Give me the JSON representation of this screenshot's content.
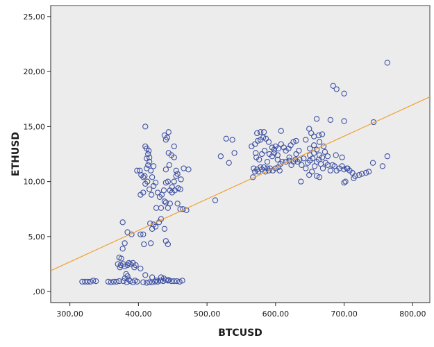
{
  "chart_data": {
    "type": "scatter",
    "xlabel": "BTCUSD",
    "ylabel": "ETHUSD",
    "xlim": [
      272,
      825
    ],
    "ylim": [
      -1.0,
      26.0
    ],
    "x_ticks": [
      {
        "value": 300,
        "label": "300,00"
      },
      {
        "value": 400,
        "label": "400,00"
      },
      {
        "value": 500,
        "label": "500,00"
      },
      {
        "value": 600,
        "label": "600,00"
      },
      {
        "value": 700,
        "label": "700,00"
      },
      {
        "value": 800,
        "label": "800,00"
      }
    ],
    "y_ticks": [
      {
        "value": 0,
        "label": ",00"
      },
      {
        "value": 5,
        "label": "5,00"
      },
      {
        "value": 10,
        "label": "10,00"
      },
      {
        "value": 15,
        "label": "15,00"
      },
      {
        "value": 20,
        "label": "20,00"
      },
      {
        "value": 25,
        "label": "25,00"
      }
    ],
    "grid": false,
    "colors": {
      "points": "#3f51a3",
      "fit_line": "#f0a030",
      "plot_background": "#ececec"
    },
    "fit_line": {
      "x": [
        272,
        825
      ],
      "y": [
        1.9,
        17.7
      ]
    },
    "points": [
      [
        318,
        0.9
      ],
      [
        322,
        0.9
      ],
      [
        326,
        0.9
      ],
      [
        330,
        0.9
      ],
      [
        334,
        1.0
      ],
      [
        338,
        0.95
      ],
      [
        356,
        0.9
      ],
      [
        360,
        0.85
      ],
      [
        364,
        0.9
      ],
      [
        368,
        0.9
      ],
      [
        372,
        0.95
      ],
      [
        378,
        0.95
      ],
      [
        383,
        0.85
      ],
      [
        388,
        0.95
      ],
      [
        392,
        0.85
      ],
      [
        398,
        0.9
      ],
      [
        407,
        0.85
      ],
      [
        412,
        0.8
      ],
      [
        416,
        0.85
      ],
      [
        420,
        0.85
      ],
      [
        424,
        0.9
      ],
      [
        428,
        0.9
      ],
      [
        432,
        1.0
      ],
      [
        436,
        0.95
      ],
      [
        440,
        1.05
      ],
      [
        444,
        1.05
      ],
      [
        448,
        0.95
      ],
      [
        452,
        0.95
      ],
      [
        456,
        0.95
      ],
      [
        460,
        0.9
      ],
      [
        464,
        1.0
      ],
      [
        380,
        1.2
      ],
      [
        384,
        1.4
      ],
      [
        386,
        1.1
      ],
      [
        382,
        1.6
      ],
      [
        395,
        1.0
      ],
      [
        410,
        1.5
      ],
      [
        420,
        1.3
      ],
      [
        426,
        1.0
      ],
      [
        433,
        1.3
      ],
      [
        437,
        1.2
      ],
      [
        443,
        1.0
      ],
      [
        370,
        2.5
      ],
      [
        374,
        2.4
      ],
      [
        378,
        2.5
      ],
      [
        384,
        2.4
      ],
      [
        388,
        2.5
      ],
      [
        392,
        2.6
      ],
      [
        396,
        2.4
      ],
      [
        373,
        2.2
      ],
      [
        380,
        2.3
      ],
      [
        386,
        2.6
      ],
      [
        394,
        2.2
      ],
      [
        403,
        2.1
      ],
      [
        372,
        3.1
      ],
      [
        375,
        3.0
      ],
      [
        377,
        3.9
      ],
      [
        380,
        4.4
      ],
      [
        384,
        5.4
      ],
      [
        390,
        5.2
      ],
      [
        403,
        5.2
      ],
      [
        407,
        5.2
      ],
      [
        408,
        4.3
      ],
      [
        418,
        4.4
      ],
      [
        420,
        5.7
      ],
      [
        425,
        5.9
      ],
      [
        430,
        6.3
      ],
      [
        433,
        6.6
      ],
      [
        440,
        4.6
      ],
      [
        443,
        4.3
      ],
      [
        438,
        5.7
      ],
      [
        377,
        6.3
      ],
      [
        417,
        6.2
      ],
      [
        422,
        6.1
      ],
      [
        426,
        7.6
      ],
      [
        433,
        7.6
      ],
      [
        438,
        8.2
      ],
      [
        440,
        8.1
      ],
      [
        443,
        7.6
      ],
      [
        446,
        8.0
      ],
      [
        449,
        9.0
      ],
      [
        453,
        9.2
      ],
      [
        457,
        8.0
      ],
      [
        461,
        7.5
      ],
      [
        465,
        7.5
      ],
      [
        470,
        7.4
      ],
      [
        403,
        8.8
      ],
      [
        407,
        9.0
      ],
      [
        410,
        9.8
      ],
      [
        413,
        10.0
      ],
      [
        416,
        9.3
      ],
      [
        419,
        8.8
      ],
      [
        422,
        9.6
      ],
      [
        425,
        9.9
      ],
      [
        428,
        9.0
      ],
      [
        431,
        8.6
      ],
      [
        434,
        8.8
      ],
      [
        437,
        9.2
      ],
      [
        440,
        9.9
      ],
      [
        443,
        10.0
      ],
      [
        446,
        9.2
      ],
      [
        449,
        9.5
      ],
      [
        452,
        10.0
      ],
      [
        455,
        10.5
      ],
      [
        458,
        9.4
      ],
      [
        461,
        9.3
      ],
      [
        398,
        11.0
      ],
      [
        402,
        11.0
      ],
      [
        404,
        10.6
      ],
      [
        407,
        10.4
      ],
      [
        409,
        10.5
      ],
      [
        412,
        11.2
      ],
      [
        414,
        11.5
      ],
      [
        416,
        11.8
      ],
      [
        418,
        11.0
      ],
      [
        420,
        10.4
      ],
      [
        422,
        11.4
      ],
      [
        414,
        12.5
      ],
      [
        416,
        12.2
      ],
      [
        412,
        12.1
      ],
      [
        444,
        12.6
      ],
      [
        448,
        12.4
      ],
      [
        452,
        12.2
      ],
      [
        455,
        11.0
      ],
      [
        457,
        10.7
      ],
      [
        462,
        10.2
      ],
      [
        466,
        11.2
      ],
      [
        473,
        11.1
      ],
      [
        440,
        11.1
      ],
      [
        445,
        11.5
      ],
      [
        410,
        13.2
      ],
      [
        412,
        13.0
      ],
      [
        415,
        12.8
      ],
      [
        440,
        13.8
      ],
      [
        442,
        14.0
      ],
      [
        438,
        14.2
      ],
      [
        444,
        14.5
      ],
      [
        452,
        13.2
      ],
      [
        410,
        15.0
      ],
      [
        512,
        8.3
      ],
      [
        520,
        12.3
      ],
      [
        528,
        13.9
      ],
      [
        532,
        11.7
      ],
      [
        537,
        13.8
      ],
      [
        540,
        12.6
      ],
      [
        567,
        10.4
      ],
      [
        570,
        10.9
      ],
      [
        573,
        11.1
      ],
      [
        575,
        10.9
      ],
      [
        578,
        11.3
      ],
      [
        580,
        11.1
      ],
      [
        583,
        11.3
      ],
      [
        585,
        10.9
      ],
      [
        588,
        11.2
      ],
      [
        590,
        11.0
      ],
      [
        592,
        11.2
      ],
      [
        596,
        11.0
      ],
      [
        600,
        11.2
      ],
      [
        604,
        11.3
      ],
      [
        606,
        11.0
      ],
      [
        568,
        11.2
      ],
      [
        572,
        12.2
      ],
      [
        576,
        12.0
      ],
      [
        580,
        12.5
      ],
      [
        584,
        12.8
      ],
      [
        588,
        11.8
      ],
      [
        591,
        12.5
      ],
      [
        595,
        12.3
      ],
      [
        598,
        12.6
      ],
      [
        603,
        12.0
      ],
      [
        607,
        11.6
      ],
      [
        610,
        11.8
      ],
      [
        615,
        11.8
      ],
      [
        620,
        11.9
      ],
      [
        565,
        13.2
      ],
      [
        570,
        13.4
      ],
      [
        574,
        13.7
      ],
      [
        578,
        13.8
      ],
      [
        582,
        14.0
      ],
      [
        586,
        13.9
      ],
      [
        590,
        13.6
      ],
      [
        595,
        13.1
      ],
      [
        598,
        12.9
      ],
      [
        600,
        13.2
      ],
      [
        604,
        13.0
      ],
      [
        608,
        13.4
      ],
      [
        612,
        13.1
      ],
      [
        615,
        12.8
      ],
      [
        619,
        13.0
      ],
      [
        622,
        13.3
      ],
      [
        626,
        13.6
      ],
      [
        630,
        13.7
      ],
      [
        573,
        14.4
      ],
      [
        578,
        14.5
      ],
      [
        583,
        14.5
      ],
      [
        608,
        14.6
      ],
      [
        571,
        12.6
      ],
      [
        603,
        12.4
      ],
      [
        620,
        12.2
      ],
      [
        623,
        11.5
      ],
      [
        626,
        11.8
      ],
      [
        629,
        12.0
      ],
      [
        632,
        11.8
      ],
      [
        635,
        12.0
      ],
      [
        638,
        11.5
      ],
      [
        641,
        12.1
      ],
      [
        644,
        11.2
      ],
      [
        647,
        11.7
      ],
      [
        650,
        11.9
      ],
      [
        654,
        12.1
      ],
      [
        657,
        11.4
      ],
      [
        660,
        11.8
      ],
      [
        663,
        12.0
      ],
      [
        666,
        11.6
      ],
      [
        669,
        11.2
      ],
      [
        673,
        11.7
      ],
      [
        676,
        11.5
      ],
      [
        680,
        11.0
      ],
      [
        630,
        12.5
      ],
      [
        634,
        12.8
      ],
      [
        650,
        12.4
      ],
      [
        656,
        12.6
      ],
      [
        660,
        12.9
      ],
      [
        664,
        12.4
      ],
      [
        668,
        12.2
      ],
      [
        672,
        12.7
      ],
      [
        676,
        12.3
      ],
      [
        650,
        13.0
      ],
      [
        656,
        13.3
      ],
      [
        664,
        13.6
      ],
      [
        670,
        13.2
      ],
      [
        644,
        13.8
      ],
      [
        652,
        14.4
      ],
      [
        656,
        14.1
      ],
      [
        663,
        14.2
      ],
      [
        668,
        14.3
      ],
      [
        649,
        14.8
      ],
      [
        637,
        10.0
      ],
      [
        649,
        10.6
      ],
      [
        653,
        10.9
      ],
      [
        660,
        10.5
      ],
      [
        664,
        10.4
      ],
      [
        683,
        11.5
      ],
      [
        686,
        11.4
      ],
      [
        689,
        11.0
      ],
      [
        693,
        11.2
      ],
      [
        697,
        11.4
      ],
      [
        700,
        11.1
      ],
      [
        704,
        11.2
      ],
      [
        708,
        11.0
      ],
      [
        712,
        10.8
      ],
      [
        716,
        10.5
      ],
      [
        714,
        10.3
      ],
      [
        700,
        9.9
      ],
      [
        702,
        10.0
      ],
      [
        722,
        10.6
      ],
      [
        726,
        10.7
      ],
      [
        732,
        10.8
      ],
      [
        736,
        10.9
      ],
      [
        688,
        12.4
      ],
      [
        697,
        12.2
      ],
      [
        705,
        11.2
      ],
      [
        742,
        11.7
      ],
      [
        756,
        11.4
      ],
      [
        763,
        12.3
      ],
      [
        660,
        15.7
      ],
      [
        680,
        15.6
      ],
      [
        700,
        15.5
      ],
      [
        743,
        15.4
      ],
      [
        684,
        18.7
      ],
      [
        689,
        18.4
      ],
      [
        700,
        18.0
      ],
      [
        763,
        20.8
      ]
    ]
  }
}
